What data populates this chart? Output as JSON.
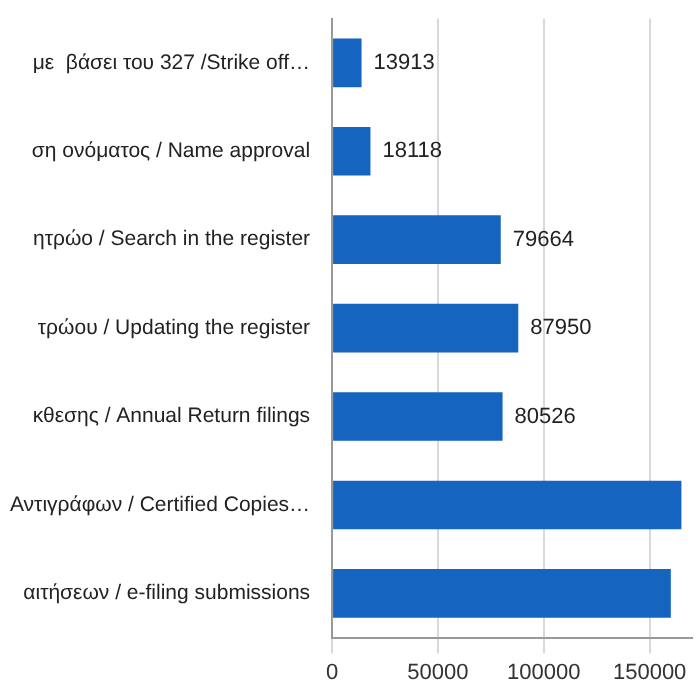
{
  "chart_data": {
    "type": "bar",
    "orientation": "horizontal",
    "categories": [
      "με  βάσει του 327 /Strike off…",
      "ση ονόματος / Name approval",
      "ητρώο / Search in the register",
      "τρώου / Updating the register",
      "κθεσης / Annual Return filings",
      "Αντιγράφων / Certified Copies…",
      "αιτήσεων / e-filing submissions"
    ],
    "values": [
      13913,
      18118,
      79664,
      87950,
      80526,
      165000,
      160000
    ],
    "value_labels": [
      "13913",
      "18118",
      "79664",
      "87950",
      "80526",
      null,
      null
    ],
    "color": "#1565c0",
    "xlim": [
      0,
      170000
    ],
    "xticks": [
      0,
      50000,
      100000,
      150000
    ],
    "grid": "x",
    "legend": false
  }
}
